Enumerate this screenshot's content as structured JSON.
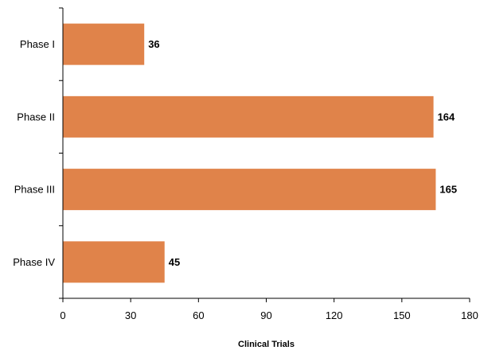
{
  "chart_data": {
    "type": "bar",
    "orientation": "horizontal",
    "categories": [
      "Phase I",
      "Phase II",
      "Phase III",
      "Phase IV"
    ],
    "values": [
      36,
      164,
      165,
      45
    ],
    "data_labels": [
      "36",
      "164",
      "165",
      "45"
    ],
    "title": "",
    "xlabel": "Clinical Trials",
    "ylabel": "",
    "xlim": [
      0,
      180
    ],
    "x_ticks": [
      0,
      30,
      60,
      90,
      120,
      150,
      180
    ],
    "x_tick_labels": [
      "0",
      "30",
      "60",
      "90",
      "120",
      "150",
      "180"
    ],
    "grid": false,
    "legend": "none",
    "bar_color": "#E0834A",
    "axis_color": "#000000"
  }
}
